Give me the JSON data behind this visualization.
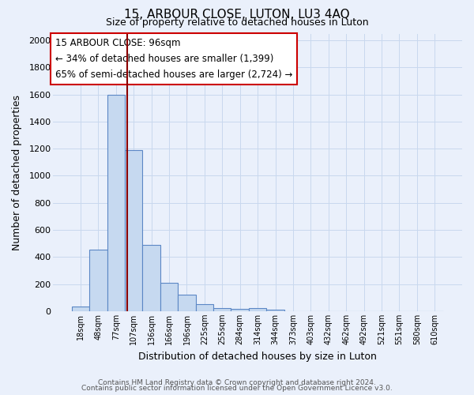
{
  "title": "15, ARBOUR CLOSE, LUTON, LU3 4AQ",
  "subtitle": "Size of property relative to detached houses in Luton",
  "xlabel": "Distribution of detached houses by size in Luton",
  "ylabel": "Number of detached properties",
  "bar_labels": [
    "18sqm",
    "48sqm",
    "77sqm",
    "107sqm",
    "136sqm",
    "166sqm",
    "196sqm",
    "225sqm",
    "255sqm",
    "284sqm",
    "314sqm",
    "344sqm",
    "373sqm",
    "403sqm",
    "432sqm",
    "462sqm",
    "492sqm",
    "521sqm",
    "551sqm",
    "580sqm",
    "610sqm"
  ],
  "bar_values": [
    35,
    455,
    1600,
    1190,
    490,
    210,
    120,
    50,
    20,
    15,
    20,
    10,
    0,
    0,
    0,
    0,
    0,
    0,
    0,
    0,
    0
  ],
  "bar_color": "#c6d9f0",
  "bar_edge_color": "#5b87c5",
  "background_color": "#eaf0fb",
  "grid_color": "#d8e4f5",
  "ylim": [
    0,
    2050
  ],
  "yticks": [
    0,
    200,
    400,
    600,
    800,
    1000,
    1200,
    1400,
    1600,
    1800,
    2000
  ],
  "red_line_x": 2.64,
  "annotation_title": "15 ARBOUR CLOSE: 96sqm",
  "annotation_line1": "← 34% of detached houses are smaller (1,399)",
  "annotation_line2": "65% of semi-detached houses are larger (2,724) →",
  "annotation_box_color": "#ffffff",
  "annotation_box_edge": "#cc0000",
  "footer1": "Contains HM Land Registry data © Crown copyright and database right 2024.",
  "footer2": "Contains public sector information licensed under the Open Government Licence v3.0."
}
